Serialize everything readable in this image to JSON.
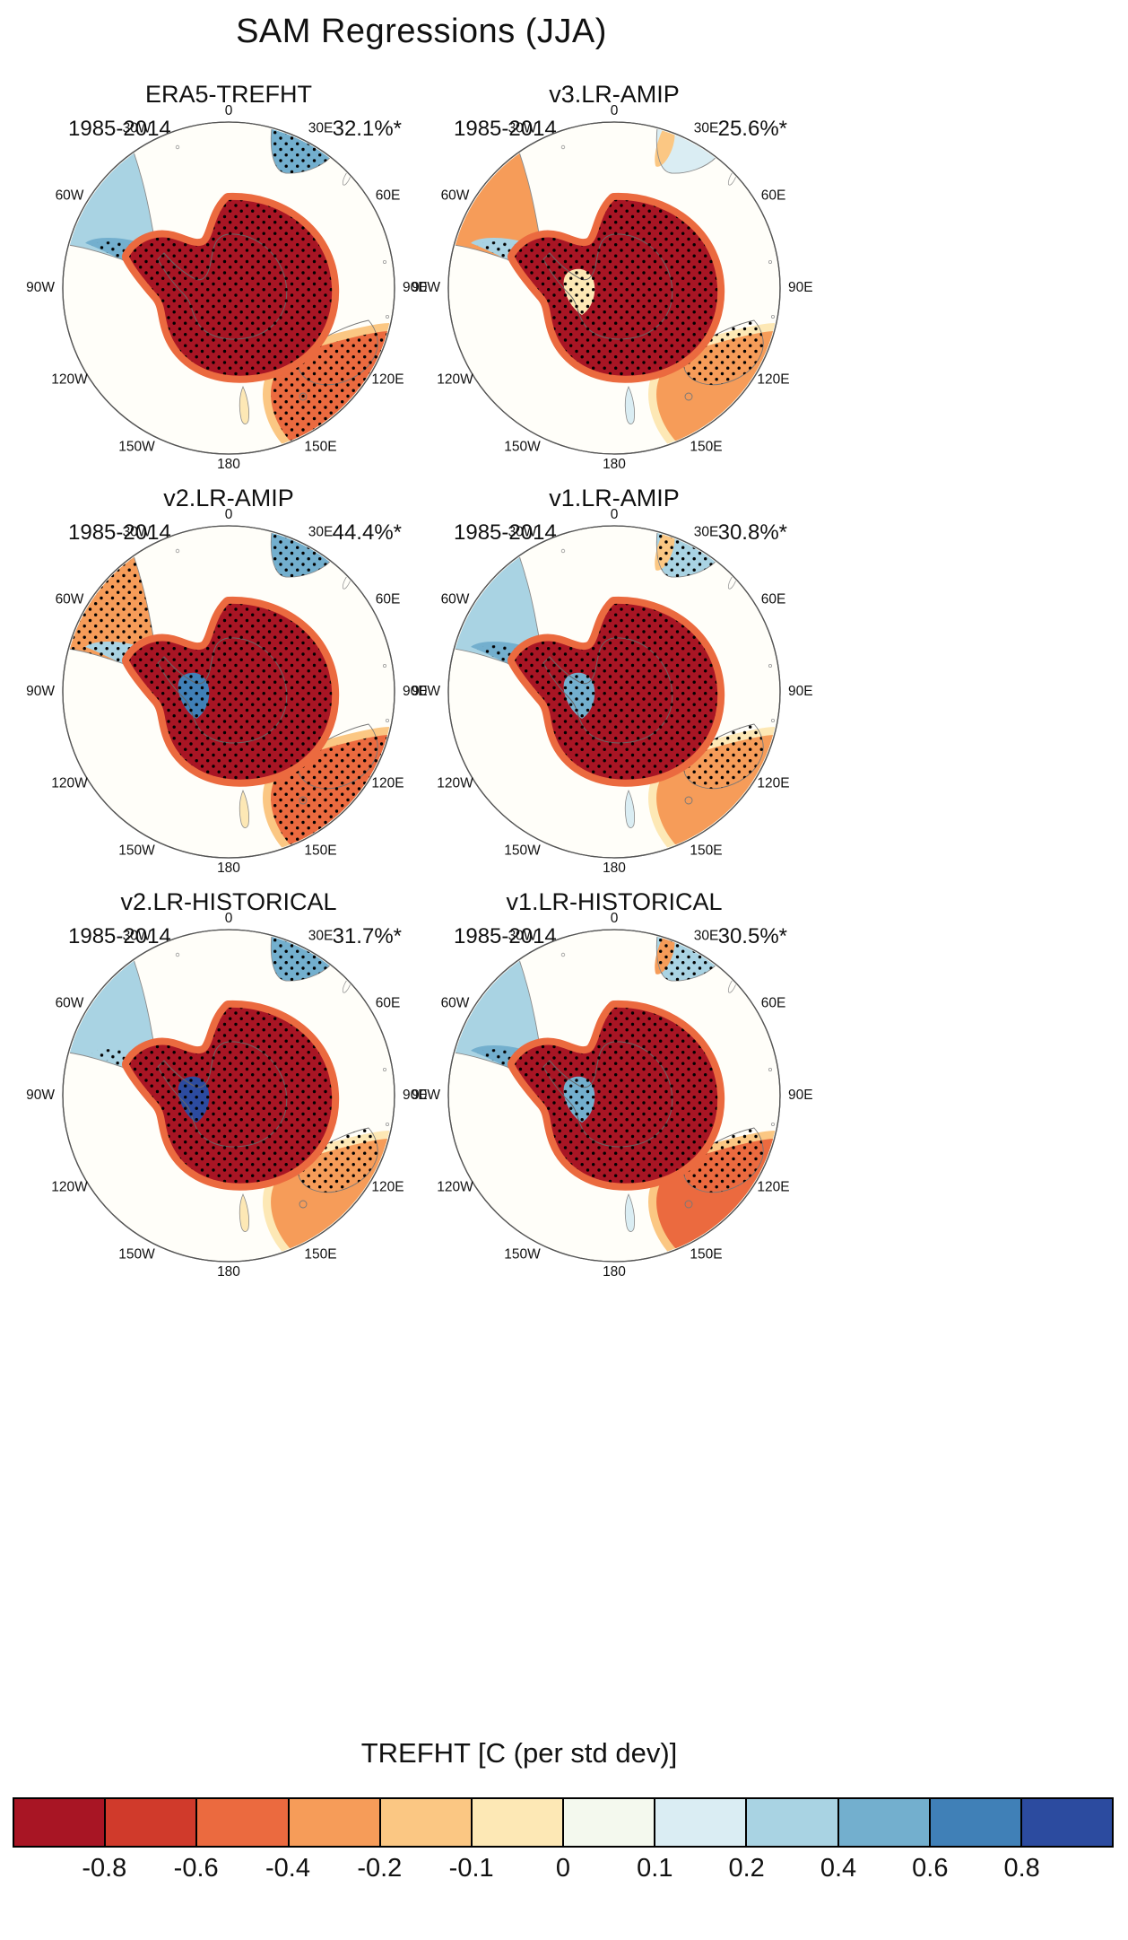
{
  "title": "SAM Regressions (JJA)",
  "longitude_labels": [
    "0",
    "30E",
    "60E",
    "90E",
    "120E",
    "150E",
    "180",
    "150W",
    "120W",
    "90W",
    "60W",
    "30W"
  ],
  "panels": [
    {
      "title": "ERA5-TREFHT",
      "period": "1985-2014",
      "variance": "32.1%*",
      "map": {
        "antarctica": "#a81524",
        "antarctica_rim": "#eb6a3f",
        "antarctica_patch": null,
        "antarctica_stipple": true,
        "south_america": "#a9d3e3",
        "south_america_tip": "#73afce",
        "south_america_stipple": "tip",
        "africa": "#73afce",
        "africa_accent": null,
        "africa_stipple": true,
        "australia": "#eb6a3f",
        "australia_halo": "#fbc783",
        "australia_stipple": "field",
        "new_zealand": "#fde8b5"
      }
    },
    {
      "title": "v3.LR-AMIP",
      "period": "1985-2014",
      "variance": "25.6%*",
      "map": {
        "antarctica": "#a81524",
        "antarctica_rim": "#eb6a3f",
        "antarctica_patch": "#fde8b5",
        "antarctica_stipple": true,
        "south_america": "#f69c59",
        "south_america_tip": "#a9d3e3",
        "south_america_stipple": "tip",
        "africa": "#daedf3",
        "africa_accent": "#fbc783",
        "africa_stipple": false,
        "australia": "#f69c59",
        "australia_halo": "#fde8b5",
        "australia_stipple": "land",
        "new_zealand": "#daedf3"
      }
    },
    {
      "title": "v2.LR-AMIP",
      "period": "1985-2014",
      "variance": "44.4%*",
      "map": {
        "antarctica": "#a81524",
        "antarctica_rim": "#eb6a3f",
        "antarctica_patch": "#4080b7",
        "antarctica_stipple": true,
        "south_america": "#f69c59",
        "south_america_tip": "#a9d3e3",
        "south_america_stipple": "field",
        "africa": "#73afce",
        "africa_accent": null,
        "africa_stipple": true,
        "australia": "#eb6a3f",
        "australia_halo": "#fbc783",
        "australia_stipple": "field",
        "new_zealand": "#fde8b5"
      }
    },
    {
      "title": "v1.LR-AMIP",
      "period": "1985-2014",
      "variance": "30.8%*",
      "map": {
        "antarctica": "#a81524",
        "antarctica_rim": "#eb6a3f",
        "antarctica_patch": "#73afce",
        "antarctica_stipple": true,
        "south_america": "#a9d3e3",
        "south_america_tip": "#73afce",
        "south_america_stipple": "tip",
        "africa": "#a9d3e3",
        "africa_accent": "#fbc783",
        "africa_stipple": true,
        "australia": "#f69c59",
        "australia_halo": "#fde8b5",
        "australia_stipple": "land",
        "new_zealand": "#daedf3"
      }
    },
    {
      "title": "v2.LR-HISTORICAL",
      "period": "1985-2014",
      "variance": "31.7%*",
      "map": {
        "antarctica": "#a81524",
        "antarctica_rim": "#eb6a3f",
        "antarctica_patch": "#2c4b9f",
        "antarctica_stipple": true,
        "south_america": "#a9d3e3",
        "south_america_tip": "#a9d3e3",
        "south_america_stipple": "tip",
        "africa": "#73afce",
        "africa_accent": null,
        "africa_stipple": true,
        "australia": "#f69c59",
        "australia_halo": "#fde8b5",
        "australia_stipple": "land",
        "new_zealand": "#fde8b5"
      }
    },
    {
      "title": "v1.LR-HISTORICAL",
      "period": "1985-2014",
      "variance": "30.5%*",
      "map": {
        "antarctica": "#a81524",
        "antarctica_rim": "#eb6a3f",
        "antarctica_patch": "#73afce",
        "antarctica_stipple": true,
        "south_america": "#a9d3e3",
        "south_america_tip": "#73afce",
        "south_america_stipple": "tip",
        "africa": "#a9d3e3",
        "africa_accent": "#f69c59",
        "africa_stipple": true,
        "australia": "#eb6a3f",
        "australia_halo": "#fbc783",
        "australia_stipple": "land",
        "new_zealand": "#daedf3"
      }
    }
  ],
  "colorbar": {
    "title": "TREFHT [C (per std dev)]",
    "tick_labels": [
      "-0.8",
      "-0.6",
      "-0.4",
      "-0.2",
      "-0.1",
      "0",
      "0.1",
      "0.2",
      "0.4",
      "0.6",
      "0.8"
    ],
    "colors": [
      "#a81524",
      "#d03a2b",
      "#eb6a3f",
      "#f69c59",
      "#fbc783",
      "#fde8b5",
      "#f4f9ee",
      "#daedf3",
      "#a9d3e3",
      "#73afce",
      "#4080b7",
      "#2c4b9f"
    ]
  },
  "chart_data": {
    "type": "heatmap",
    "title": "SAM Regressions (JJA)",
    "projection": "south-polar-stereographic",
    "variable": "TREFHT [C (per std dev)]",
    "period": "1985-2014",
    "colorbar_levels": [
      -0.8,
      -0.6,
      -0.4,
      -0.2,
      -0.1,
      0,
      0.1,
      0.2,
      0.4,
      0.6,
      0.8
    ],
    "panels": [
      {
        "name": "ERA5-TREFHT",
        "variance_explained_pct": 32.1,
        "significant": true,
        "pattern_summary": "Strong warm (dark red, stippled) anomaly over Antarctica; warm stippled blob over Australia; cool (blue, stippled) southern Africa and Patagonia tip."
      },
      {
        "name": "v3.LR-AMIP",
        "variance_explained_pct": 25.6,
        "significant": true,
        "pattern_summary": "Warm stippled Antarctica with pale wedge west of pole; warm Andes/Patagonia; weaker warm Australia; pale southern Africa."
      },
      {
        "name": "v2.LR-AMIP",
        "variance_explained_pct": 44.4,
        "significant": true,
        "pattern_summary": "Warm stippled Antarctica with blue patch near peninsula; warm stippled northern Patagonia; cool stippled southern Africa; strong warm stippled Australia."
      },
      {
        "name": "v1.LR-AMIP",
        "variance_explained_pct": 30.8,
        "significant": true,
        "pattern_summary": "Warm stippled Antarctica with blue streak west of pole; cool Patagonia; cool stippled southern Africa; moderate warm Australia."
      },
      {
        "name": "v2.LR-HISTORICAL",
        "variance_explained_pct": 31.7,
        "significant": true,
        "pattern_summary": "Warm stippled Antarctica with dark navy patch at peninsula; cool Patagonia; strongly cool stippled southern Africa; moderate warm Australia."
      },
      {
        "name": "v1.LR-HISTORICAL",
        "variance_explained_pct": 30.5,
        "significant": true,
        "pattern_summary": "Warm stippled Antarctica; cool Patagonia; cool stippled southern Africa with warm fringe; warm stippled Australia."
      }
    ]
  }
}
